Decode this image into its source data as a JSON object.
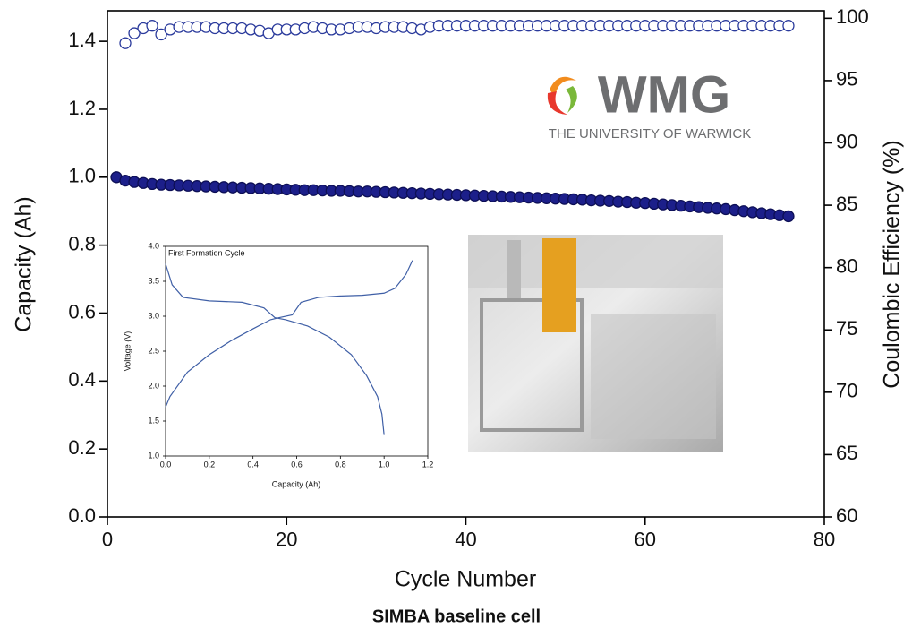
{
  "chart_data": [
    {
      "type": "scatter",
      "x_label": "Cycle Number",
      "y_label": "Capacity (Ah)",
      "y2_label": "Coulombic Efficiency (%)",
      "x": [
        1,
        2,
        3,
        4,
        5,
        6,
        7,
        8,
        9,
        10,
        11,
        12,
        13,
        14,
        15,
        16,
        17,
        18,
        19,
        20,
        21,
        22,
        23,
        24,
        25,
        26,
        27,
        28,
        29,
        30,
        31,
        32,
        33,
        34,
        35,
        36,
        37,
        38,
        39,
        40,
        41,
        42,
        43,
        44,
        45,
        46,
        47,
        48,
        49,
        50,
        51,
        52,
        53,
        54,
        55,
        56,
        57,
        58,
        59,
        60,
        61,
        62,
        63,
        64,
        65,
        66,
        67,
        68,
        69,
        70,
        71,
        72,
        73,
        74,
        75,
        76
      ],
      "series": [
        {
          "color": "#1c1f8a",
          "filled": true,
          "values": [
            1.0,
            0.99,
            0.986,
            0.983,
            0.98,
            0.978,
            0.977,
            0.976,
            0.975,
            0.974,
            0.973,
            0.972,
            0.971,
            0.97,
            0.969,
            0.968,
            0.967,
            0.966,
            0.965,
            0.964,
            0.963,
            0.962,
            0.962,
            0.961,
            0.96,
            0.96,
            0.959,
            0.958,
            0.958,
            0.957,
            0.956,
            0.955,
            0.954,
            0.953,
            0.952,
            0.951,
            0.95,
            0.949,
            0.948,
            0.947,
            0.946,
            0.945,
            0.944,
            0.943,
            0.942,
            0.941,
            0.94,
            0.939,
            0.938,
            0.937,
            0.936,
            0.935,
            0.934,
            0.932,
            0.931,
            0.93,
            0.928,
            0.927,
            0.925,
            0.924,
            0.922,
            0.92,
            0.918,
            0.916,
            0.914,
            0.912,
            0.91,
            0.908,
            0.906,
            0.903,
            0.9,
            0.897,
            0.894,
            0.891,
            0.888,
            0.885
          ]
        },
        {
          "color": "#2a3a9c",
          "filled": false,
          "axis": "y2",
          "values": [
            null,
            98.0,
            98.8,
            99.2,
            99.4,
            98.7,
            99.1,
            99.3,
            99.3,
            99.3,
            99.3,
            99.2,
            99.2,
            99.2,
            99.2,
            99.1,
            99.0,
            98.8,
            99.1,
            99.1,
            99.1,
            99.2,
            99.3,
            99.2,
            99.1,
            99.1,
            99.2,
            99.3,
            99.3,
            99.2,
            99.3,
            99.3,
            99.3,
            99.2,
            99.1,
            99.3,
            99.4,
            99.4,
            99.4,
            99.4,
            99.4,
            99.4,
            99.4,
            99.4,
            99.4,
            99.4,
            99.4,
            99.4,
            99.4,
            99.4,
            99.4,
            99.4,
            99.4,
            99.4,
            99.4,
            99.4,
            99.4,
            99.4,
            99.4,
            99.4,
            99.4,
            99.4,
            99.4,
            99.4,
            99.4,
            99.4,
            99.4,
            99.4,
            99.4,
            99.4,
            99.4,
            99.4,
            99.4,
            99.4,
            99.4,
            99.4
          ]
        }
      ],
      "xlim": [
        0,
        80
      ],
      "xticks": [
        0,
        20,
        40,
        60,
        80
      ],
      "ylim": [
        0,
        1.49
      ],
      "yticks": [
        {
          "value": 0,
          "label": "0.0"
        },
        {
          "value": 0.2,
          "label": "0.2"
        },
        {
          "value": 0.4,
          "label": "0.4"
        },
        {
          "value": 0.6,
          "label": "0.6"
        },
        {
          "value": 0.8,
          "label": "0.8"
        },
        {
          "value": 1.0,
          "label": "1.0"
        },
        {
          "value": 1.2,
          "label": "1.2"
        },
        {
          "value": 1.4,
          "label": "1.4"
        }
      ],
      "y2lim": [
        60,
        100.6
      ],
      "y2ticks": [
        60,
        65,
        70,
        75,
        80,
        85,
        90,
        95,
        100
      ]
    },
    {
      "type": "line",
      "title": "First Formation Cycle",
      "x_label": "Capacity (Ah)",
      "y_label": "Voltage (V)",
      "series": [
        {
          "color": "#3f5fa6",
          "x": [
            0,
            0.02,
            0.1,
            0.2,
            0.3,
            0.4,
            0.48,
            0.52,
            0.58,
            0.62,
            0.7,
            0.8,
            0.9,
            1.0,
            1.05,
            1.1,
            1.13
          ],
          "values": [
            1.7,
            1.85,
            2.2,
            2.45,
            2.65,
            2.82,
            2.95,
            2.98,
            3.02,
            3.2,
            3.27,
            3.29,
            3.3,
            3.33,
            3.4,
            3.6,
            3.8
          ]
        },
        {
          "color": "#3f5fa6",
          "x": [
            0,
            0.03,
            0.08,
            0.2,
            0.35,
            0.45,
            0.5,
            0.55,
            0.65,
            0.75,
            0.85,
            0.92,
            0.97,
            0.99,
            1.0
          ],
          "values": [
            3.75,
            3.45,
            3.27,
            3.22,
            3.2,
            3.12,
            2.98,
            2.95,
            2.86,
            2.7,
            2.45,
            2.15,
            1.85,
            1.6,
            1.3
          ]
        }
      ],
      "xlim": [
        0,
        1.2
      ],
      "xticks": [
        {
          "value": 0,
          "label": "0.0"
        },
        {
          "value": 0.2,
          "label": "0.2"
        },
        {
          "value": 0.4,
          "label": "0.4"
        },
        {
          "value": 0.6,
          "label": "0.6"
        },
        {
          "value": 0.8,
          "label": "0.8"
        },
        {
          "value": 1.0,
          "label": "1.0"
        },
        {
          "value": 1.2,
          "label": "1.2"
        }
      ],
      "ylim": [
        1.0,
        4.0
      ],
      "yticks": [
        {
          "value": 1,
          "label": "1.0"
        },
        1.5,
        {
          "value": 2,
          "label": "2.0"
        },
        2.5,
        {
          "value": 3,
          "label": "3.0"
        },
        3.5,
        {
          "value": 4,
          "label": "4.0"
        }
      ]
    }
  ],
  "logo": {
    "name": "WMG",
    "subtitle": "THE UNIVERSITY OF WARWICK"
  },
  "caption": "SIMBA baseline cell"
}
